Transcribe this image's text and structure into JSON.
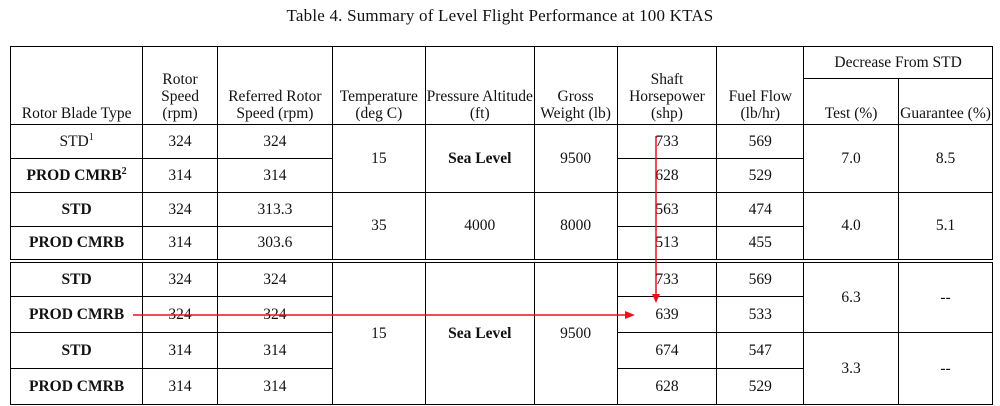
{
  "title": "Table 4. Summary of Level Flight Performance at 100 KTAS",
  "headers": {
    "rotor_blade_type": "Rotor Blade Type",
    "rotor_speed": "Rotor Speed (rpm)",
    "referred_rotor_speed": "Referred Rotor Speed (rpm)",
    "temperature": "Temperature (deg C)",
    "pressure_altitude": "Pressure Altitude (ft)",
    "gross_weight": "Gross Weight (lb)",
    "shaft_horsepower": "Shaft Horsepower (shp)",
    "fuel_flow": "Fuel Flow (lb/hr)",
    "decrease_from_std": "Decrease From STD",
    "test": "Test (%)",
    "guarantee": "Guarantee (%)"
  },
  "rows": [
    {
      "type": "STD",
      "footnote": "1",
      "rotor_speed": "324",
      "referred": "324",
      "shp": "733",
      "fuel": "569"
    },
    {
      "type": "PROD CMRB",
      "footnote": "2",
      "rotor_speed": "314",
      "referred": "314",
      "shp": "628",
      "fuel": "529"
    },
    {
      "type": "STD",
      "footnote": "",
      "rotor_speed": "324",
      "referred": "313.3",
      "shp": "563",
      "fuel": "474"
    },
    {
      "type": "PROD CMRB",
      "footnote": "",
      "rotor_speed": "314",
      "referred": "303.6",
      "shp": "513",
      "fuel": "455"
    },
    {
      "type": "STD",
      "footnote": "",
      "rotor_speed": "324",
      "referred": "324",
      "shp": "733",
      "fuel": "569"
    },
    {
      "type": "PROD CMRB",
      "footnote": "",
      "rotor_speed": "324",
      "referred": "324",
      "shp": "639",
      "fuel": "533"
    },
    {
      "type": "STD",
      "footnote": "",
      "rotor_speed": "314",
      "referred": "314",
      "shp": "674",
      "fuel": "547"
    },
    {
      "type": "PROD CMRB",
      "footnote": "",
      "rotor_speed": "314",
      "referred": "314",
      "shp": "628",
      "fuel": "529"
    }
  ],
  "conditions": [
    {
      "temperature": "15",
      "altitude": "Sea Level",
      "weight": "9500"
    },
    {
      "temperature": "35",
      "altitude": "4000",
      "weight": "8000"
    },
    {
      "temperature": "15",
      "altitude": "Sea Level",
      "weight": "9500"
    }
  ],
  "decreases": [
    {
      "test": "7.0",
      "guarantee": "8.5"
    },
    {
      "test": "4.0",
      "guarantee": "5.1"
    },
    {
      "test": "6.3",
      "guarantee": "--"
    },
    {
      "test": "3.3",
      "guarantee": "--"
    }
  ],
  "annotation_color": "#e8141b"
}
